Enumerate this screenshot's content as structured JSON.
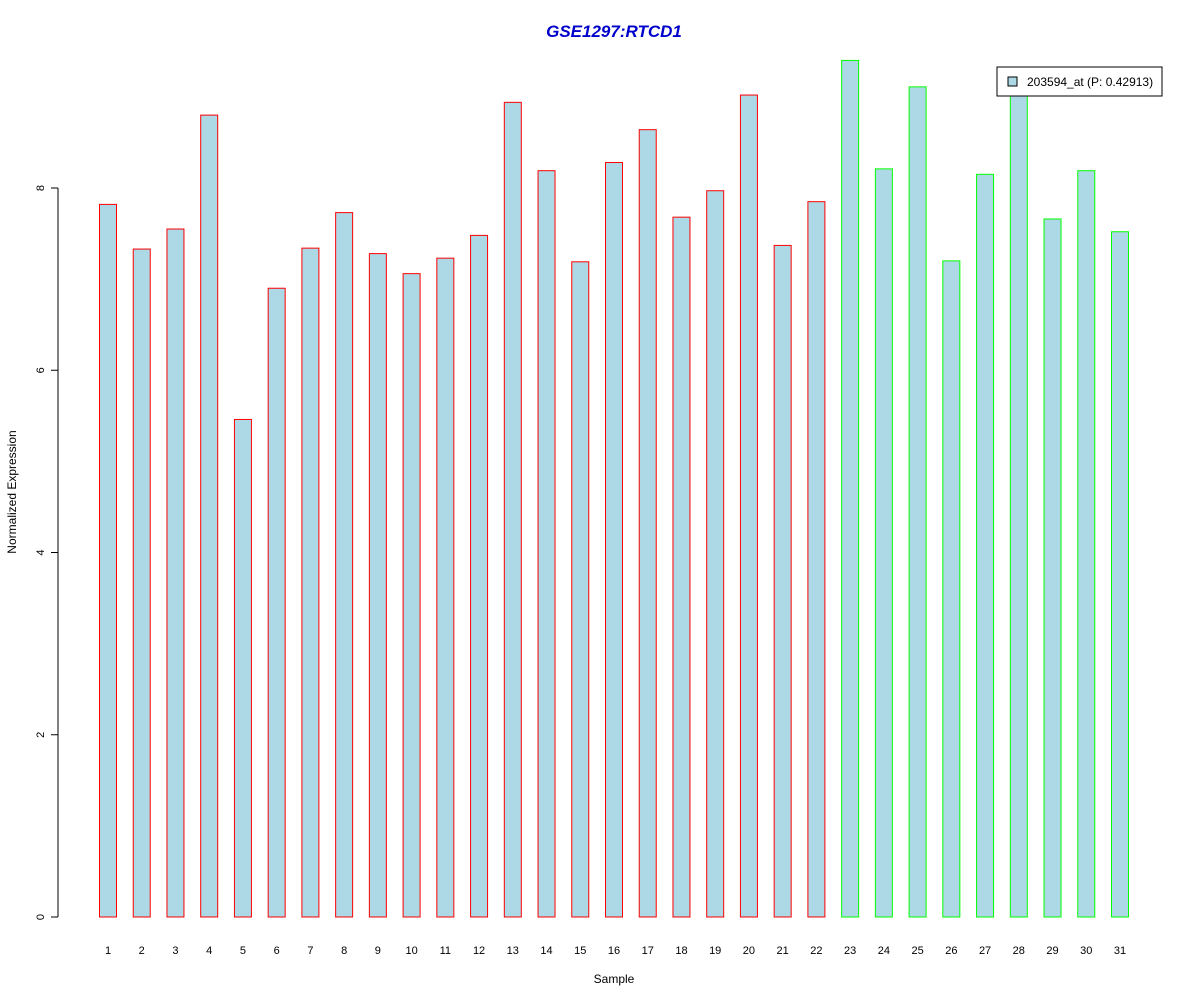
{
  "chart_data": {
    "type": "bar",
    "title": "GSE1297:RTCD1",
    "xlabel": "Sample",
    "ylabel": "Normalized Expression",
    "ylim": [
      0,
      9.6
    ],
    "y_ticks": [
      "0",
      "2",
      "4",
      "6",
      "8"
    ],
    "categories": [
      "1",
      "2",
      "3",
      "4",
      "5",
      "6",
      "7",
      "8",
      "9",
      "10",
      "11",
      "12",
      "13",
      "14",
      "15",
      "16",
      "17",
      "18",
      "19",
      "20",
      "21",
      "22",
      "23",
      "24",
      "25",
      "26",
      "27",
      "28",
      "29",
      "30",
      "31"
    ],
    "values": [
      7.82,
      7.33,
      7.55,
      8.8,
      5.46,
      6.9,
      7.34,
      7.73,
      7.28,
      7.06,
      7.23,
      7.48,
      8.94,
      8.19,
      7.19,
      8.28,
      8.64,
      7.68,
      7.97,
      9.02,
      7.37,
      7.85,
      9.4,
      8.21,
      9.11,
      7.2,
      8.15,
      9.01,
      7.66,
      8.19,
      7.52
    ],
    "groups": [
      1,
      1,
      1,
      1,
      1,
      1,
      1,
      1,
      1,
      1,
      1,
      1,
      1,
      1,
      1,
      1,
      1,
      1,
      1,
      1,
      1,
      1,
      2,
      2,
      2,
      2,
      2,
      2,
      2,
      2,
      2
    ],
    "legend": {
      "label": "203594_at (P: 0.42913)",
      "position": "top-right"
    },
    "grid": false
  },
  "colors": {
    "title": "#0000cc",
    "bar_fill": "#add8e6",
    "group1_border": "#ff0000",
    "group2_border": "#00ff00",
    "axis": "#000000"
  }
}
